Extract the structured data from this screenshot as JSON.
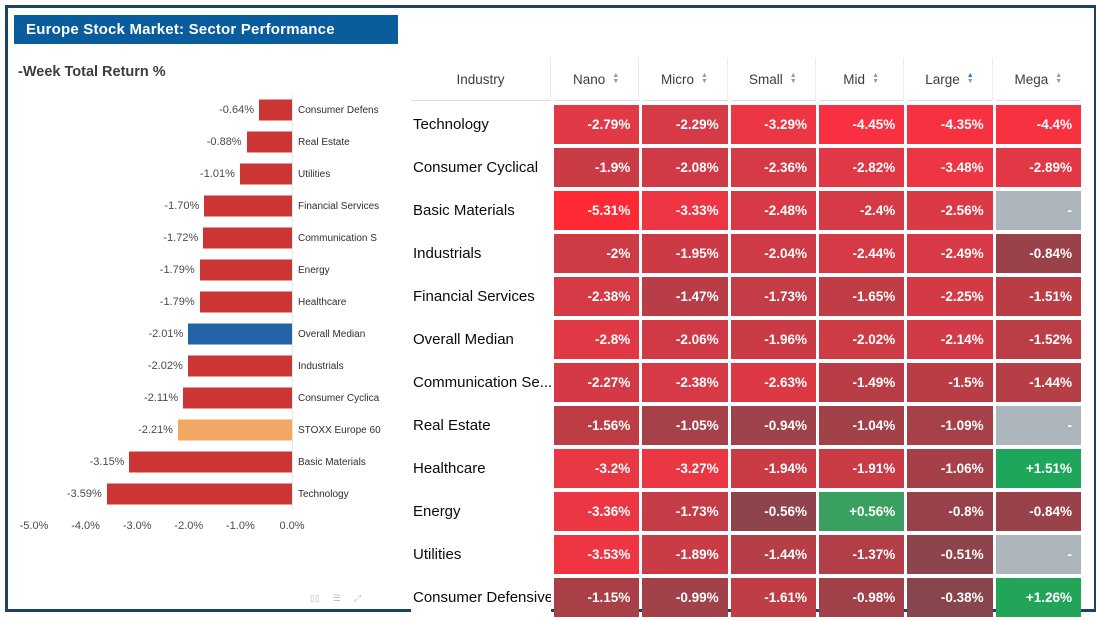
{
  "header": {
    "title": "Europe Stock Market: Sector Performance"
  },
  "colors": {
    "titlebar": "#0a5d9c",
    "frame_border": "#1c4366",
    "bar_red": "#cb3634",
    "bar_blue": "#2563a8",
    "bar_orange": "#f2a763",
    "missing_gray": "#aeb6bd",
    "positive_green": "#22a558",
    "sorted_arrow_blue": "#1f7ae0"
  },
  "chart_controls": [
    {
      "name": "pages-icon",
      "glyph": "▯▯"
    },
    {
      "name": "menu-icon",
      "glyph": "☰"
    },
    {
      "name": "expand-icon",
      "glyph": "⤢"
    }
  ],
  "chart_data": [
    {
      "type": "bar",
      "orientation": "horizontal",
      "title": "-Week Total Return %",
      "xlabel": "",
      "ylabel": "",
      "xlim": [
        -5.0,
        0.0
      ],
      "x_ticks": [
        "-5.0%",
        "-4.0%",
        "-3.0%",
        "-2.0%",
        "-1.0%",
        "0.0%"
      ],
      "categories": [
        "Consumer Defens",
        "Real Estate",
        "Utilities",
        "Financial Services",
        "Communication S",
        "Energy",
        "Healthcare",
        "Overall Median",
        "Industrials",
        "Consumer Cyclica",
        "STOXX Europe 60",
        "Basic Materials",
        "Technology"
      ],
      "values": [
        -0.64,
        -0.88,
        -1.01,
        -1.7,
        -1.72,
        -1.79,
        -1.79,
        -2.01,
        -2.02,
        -2.11,
        -2.21,
        -3.15,
        -3.59
      ],
      "labels": [
        "-0.64%",
        "-0.88%",
        "-1.01%",
        "-1.70%",
        "-1.72%",
        "-1.79%",
        "-1.79%",
        "-2.01%",
        "-2.02%",
        "-2.11%",
        "-2.21%",
        "-3.15%",
        "-3.59%"
      ],
      "bar_colors": [
        "#cb3634",
        "#cb3634",
        "#cb3634",
        "#cb3634",
        "#cb3634",
        "#cb3634",
        "#cb3634",
        "#2563a8",
        "#cb3634",
        "#cb3634",
        "#f2a763",
        "#cb3634",
        "#cb3634"
      ]
    },
    {
      "type": "heatmap",
      "industry_header": "Industry",
      "columns": [
        {
          "label": "Nano",
          "sorted": false
        },
        {
          "label": "Micro",
          "sorted": false
        },
        {
          "label": "Small",
          "sorted": false
        },
        {
          "label": "Mid",
          "sorted": false
        },
        {
          "label": "Large",
          "sorted": true
        },
        {
          "label": "Mega",
          "sorted": false
        }
      ],
      "rows": [
        {
          "industry": "Technology",
          "cells": [
            {
              "text": "-2.79%",
              "color": "#e23946"
            },
            {
              "text": "-2.29%",
              "color": "#d63a46"
            },
            {
              "text": "-3.29%",
              "color": "#ec3643"
            },
            {
              "text": "-4.45%",
              "color": "#f93041"
            },
            {
              "text": "-4.35%",
              "color": "#f83141"
            },
            {
              "text": "-4.4%",
              "color": "#f83141"
            }
          ]
        },
        {
          "industry": "Consumer Cyclical",
          "cells": [
            {
              "text": "-1.9%",
              "color": "#ca3b45"
            },
            {
              "text": "-2.08%",
              "color": "#cf3a46"
            },
            {
              "text": "-2.36%",
              "color": "#d63a46"
            },
            {
              "text": "-2.82%",
              "color": "#e13845"
            },
            {
              "text": "-3.48%",
              "color": "#ee3543"
            },
            {
              "text": "-2.89%",
              "color": "#e23845"
            }
          ]
        },
        {
          "industry": "Basic Materials",
          "cells": [
            {
              "text": "-5.31%",
              "color": "#ff2936"
            },
            {
              "text": "-3.33%",
              "color": "#ed3543"
            },
            {
              "text": "-2.48%",
              "color": "#d83946"
            },
            {
              "text": "-2.4%",
              "color": "#d63a46"
            },
            {
              "text": "-2.56%",
              "color": "#da3946"
            },
            {
              "text": "-",
              "color": "#aeb6bd"
            }
          ]
        },
        {
          "industry": "Industrials",
          "cells": [
            {
              "text": "-2%",
              "color": "#cd3b45"
            },
            {
              "text": "-1.95%",
              "color": "#cc3b45"
            },
            {
              "text": "-2.04%",
              "color": "#ce3a46"
            },
            {
              "text": "-2.44%",
              "color": "#d63a46"
            },
            {
              "text": "-2.49%",
              "color": "#d73946"
            },
            {
              "text": "-0.84%",
              "color": "#99424a"
            }
          ]
        },
        {
          "industry": "Financial Services",
          "cells": [
            {
              "text": "-2.38%",
              "color": "#d63a46"
            },
            {
              "text": "-1.47%",
              "color": "#b93d46"
            },
            {
              "text": "-1.73%",
              "color": "#c33c46"
            },
            {
              "text": "-1.65%",
              "color": "#c03d46"
            },
            {
              "text": "-2.25%",
              "color": "#d33a46"
            },
            {
              "text": "-1.51%",
              "color": "#ba3d46"
            }
          ]
        },
        {
          "industry": "Overall Median",
          "cells": [
            {
              "text": "-2.8%",
              "color": "#e03845"
            },
            {
              "text": "-2.06%",
              "color": "#cf3a46"
            },
            {
              "text": "-1.96%",
              "color": "#cb3b45"
            },
            {
              "text": "-2.02%",
              "color": "#cd3b45"
            },
            {
              "text": "-2.14%",
              "color": "#d13a46"
            },
            {
              "text": "-1.52%",
              "color": "#bb3d46"
            }
          ]
        },
        {
          "industry": "Communication Se...",
          "cells": [
            {
              "text": "-2.27%",
              "color": "#d43a46"
            },
            {
              "text": "-2.38%",
              "color": "#d63a46"
            },
            {
              "text": "-2.63%",
              "color": "#dc3945"
            },
            {
              "text": "-1.49%",
              "color": "#b93d46"
            },
            {
              "text": "-1.5%",
              "color": "#ba3d46"
            },
            {
              "text": "-1.44%",
              "color": "#b63e47"
            }
          ]
        },
        {
          "industry": "Real Estate",
          "cells": [
            {
              "text": "-1.56%",
              "color": "#bc3d46"
            },
            {
              "text": "-1.05%",
              "color": "#a44149"
            },
            {
              "text": "-0.94%",
              "color": "#9e424b"
            },
            {
              "text": "-1.04%",
              "color": "#a34149"
            },
            {
              "text": "-1.09%",
              "color": "#a64049"
            },
            {
              "text": "-",
              "color": "#aeb6bd"
            }
          ]
        },
        {
          "industry": "Healthcare",
          "cells": [
            {
              "text": "-3.2%",
              "color": "#ea3744"
            },
            {
              "text": "-3.27%",
              "color": "#eb3643"
            },
            {
              "text": "-1.94%",
              "color": "#cb3b45"
            },
            {
              "text": "-1.91%",
              "color": "#ca3b45"
            },
            {
              "text": "-1.06%",
              "color": "#a54049"
            },
            {
              "text": "+1.51%",
              "color": "#1ea65a"
            }
          ]
        },
        {
          "industry": "Energy",
          "cells": [
            {
              "text": "-3.36%",
              "color": "#ec3643"
            },
            {
              "text": "-1.73%",
              "color": "#c33c46"
            },
            {
              "text": "-0.56%",
              "color": "#8f434c"
            },
            {
              "text": "+0.56%",
              "color": "#3aa061"
            },
            {
              "text": "-0.8%",
              "color": "#97424b"
            },
            {
              "text": "-0.84%",
              "color": "#99424a"
            }
          ]
        },
        {
          "industry": "Utilities",
          "cells": [
            {
              "text": "-3.53%",
              "color": "#ef3442"
            },
            {
              "text": "-1.89%",
              "color": "#c93b45"
            },
            {
              "text": "-1.44%",
              "color": "#b63e47"
            },
            {
              "text": "-1.37%",
              "color": "#b23e47"
            },
            {
              "text": "-0.51%",
              "color": "#8d444c"
            },
            {
              "text": "-",
              "color": "#aeb6bd"
            }
          ]
        },
        {
          "industry": "Consumer Defensive",
          "cells": [
            {
              "text": "-1.15%",
              "color": "#a94048"
            },
            {
              "text": "-0.99%",
              "color": "#a14149"
            },
            {
              "text": "-1.61%",
              "color": "#be3d46"
            },
            {
              "text": "-0.98%",
              "color": "#a04149"
            },
            {
              "text": "-0.38%",
              "color": "#87454d"
            },
            {
              "text": "+1.26%",
              "color": "#22a558"
            }
          ]
        }
      ]
    }
  ]
}
